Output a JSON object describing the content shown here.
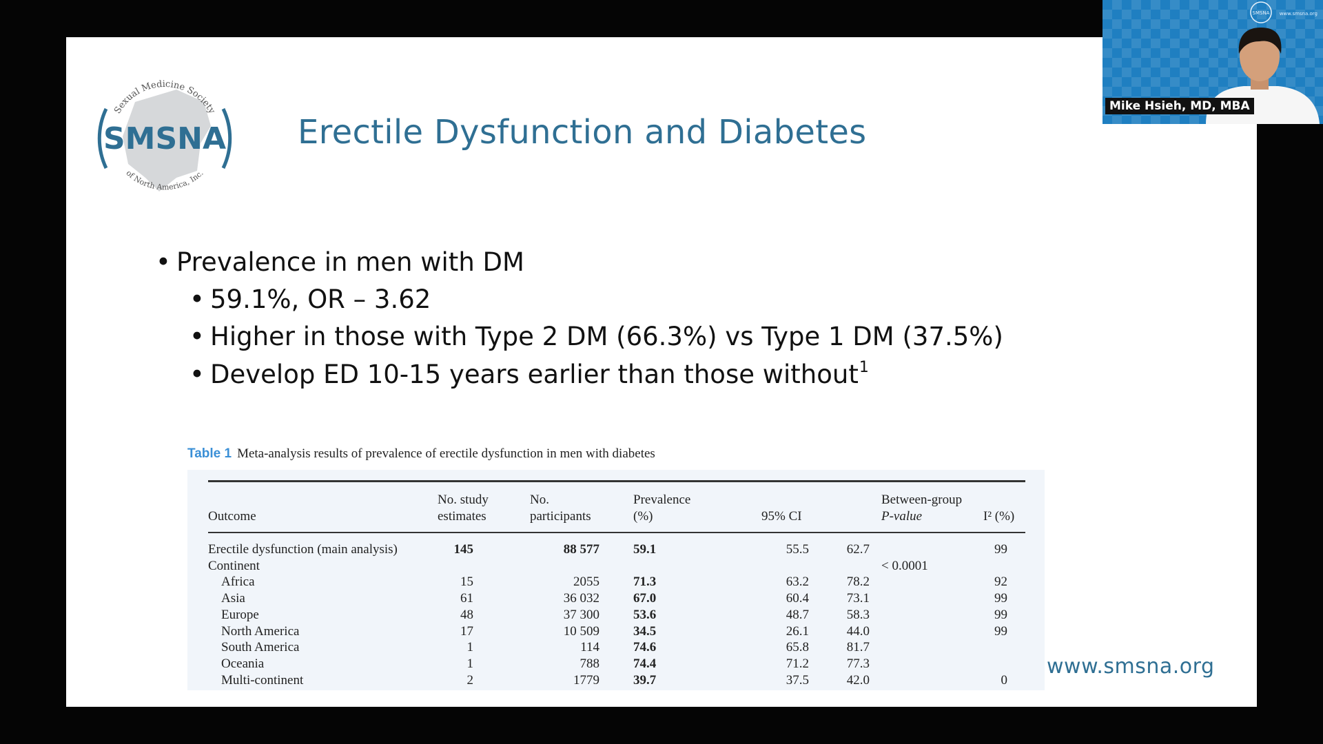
{
  "slide": {
    "logo": {
      "org_upper": "Sexual Medicine Society",
      "acronym": "SMSNA",
      "org_lower": "of North America, Inc."
    },
    "title": "Erectile Dysfunction and Diabetes",
    "bullets": [
      {
        "level": 1,
        "text": "Prevalence in men with DM"
      },
      {
        "level": 2,
        "text": "59.1%, OR – 3.62"
      },
      {
        "level": 2,
        "text": "Higher in those with Type 2 DM (66.3%) vs Type 1 DM (37.5%)"
      },
      {
        "level": 2,
        "text": "Develop ED 10-15 years earlier than those without",
        "superscript": "1"
      }
    ],
    "table": {
      "caption_label": "Table 1",
      "caption_text": "Meta-analysis results of prevalence of erectile dysfunction in men with diabetes",
      "headers": {
        "outcome": "Outcome",
        "estimates_1": "No. study",
        "estimates_2": "estimates",
        "participants_1": "No.",
        "participants_2": "participants",
        "prevalence_1": "Prevalence",
        "prevalence_2": "(%)",
        "ci": "95% CI",
        "pvalue_1": "Between-group",
        "pvalue_2": "P-value",
        "i2": "I² (%)"
      },
      "rows": [
        {
          "outcome": "Erectile dysfunction (main analysis)",
          "estimates": "145",
          "participants": "88 577",
          "prevalence": "59.1",
          "ci_low": "55.5",
          "ci_high": "62.7",
          "pvalue": "",
          "i2": "99"
        },
        {
          "outcome": "Continent",
          "estimates": "",
          "participants": "",
          "prevalence": "",
          "ci_low": "",
          "ci_high": "",
          "pvalue": "< 0.0001",
          "i2": ""
        },
        {
          "outcome": "Africa",
          "estimates": "15",
          "participants": "2055",
          "prevalence": "71.3",
          "ci_low": "63.2",
          "ci_high": "78.2",
          "pvalue": "",
          "i2": "92"
        },
        {
          "outcome": "Asia",
          "estimates": "61",
          "participants": "36 032",
          "prevalence": "67.0",
          "ci_low": "60.4",
          "ci_high": "73.1",
          "pvalue": "",
          "i2": "99"
        },
        {
          "outcome": "Europe",
          "estimates": "48",
          "participants": "37 300",
          "prevalence": "53.6",
          "ci_low": "48.7",
          "ci_high": "58.3",
          "pvalue": "",
          "i2": "99"
        },
        {
          "outcome": "North America",
          "estimates": "17",
          "participants": "10 509",
          "prevalence": "34.5",
          "ci_low": "26.1",
          "ci_high": "44.0",
          "pvalue": "",
          "i2": "99"
        },
        {
          "outcome": "South America",
          "estimates": "1",
          "participants": "114",
          "prevalence": "74.6",
          "ci_low": "65.8",
          "ci_high": "81.7",
          "pvalue": "",
          "i2": ""
        },
        {
          "outcome": "Oceania",
          "estimates": "1",
          "participants": "788",
          "prevalence": "74.4",
          "ci_low": "71.2",
          "ci_high": "77.3",
          "pvalue": "",
          "i2": ""
        },
        {
          "outcome": "Multi-continent",
          "estimates": "2",
          "participants": "1779",
          "prevalence": "39.7",
          "ci_low": "37.5",
          "ci_high": "42.0",
          "pvalue": "",
          "i2": "0"
        }
      ]
    },
    "url": "www.smsna.org"
  },
  "video": {
    "speaker_name": "Mike Hsieh, MD, MBA",
    "background_url": "www.smsna.org",
    "badge": "SMSNA"
  },
  "colors": {
    "title": "#2f6f93",
    "table_label": "#3a8fd6",
    "background": "#050505",
    "slide": "#ffffff",
    "video_bg": "#1f7fc1"
  }
}
